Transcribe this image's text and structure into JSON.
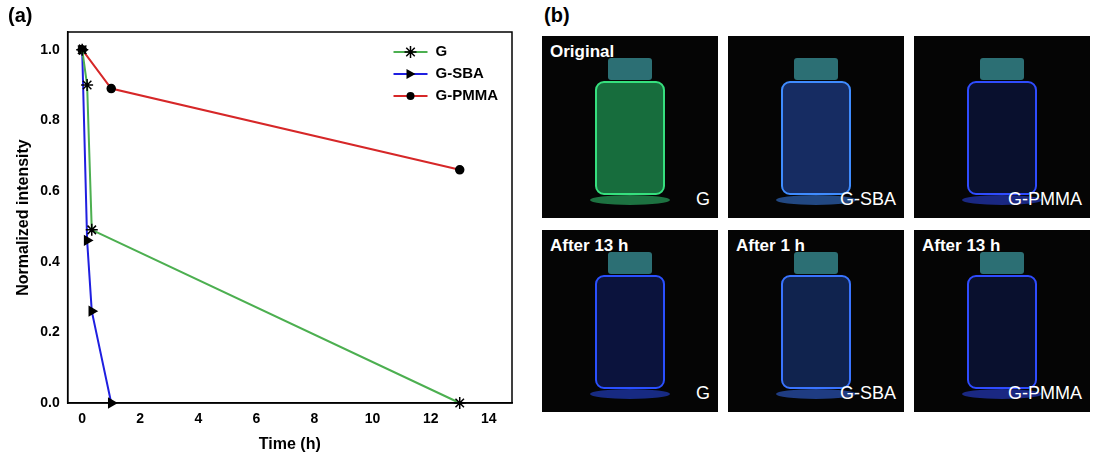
{
  "chart_data": {
    "type": "line",
    "panel_label": "(a)",
    "x_label": "Time (h)",
    "y_label": "Normalized intensity",
    "xlim": [
      -0.5,
      14.8
    ],
    "xticks": [
      0,
      2,
      4,
      6,
      8,
      10,
      12,
      14
    ],
    "ylim": [
      0,
      1.05
    ],
    "yticks": [
      {
        "value": 0,
        "label": "0.0"
      },
      0.2,
      0.4,
      0.6,
      0.8,
      {
        "value": 1,
        "label": "1.0"
      }
    ],
    "grid": false,
    "legend": "upper right",
    "series": [
      {
        "name": "G",
        "color": "#4caf50",
        "marker": "star",
        "x": [
          0,
          0.17,
          0.33,
          13
        ],
        "values": [
          1.0,
          0.9,
          0.49,
          0.0
        ]
      },
      {
        "name": "G-SBA",
        "color": "#1f1fe0",
        "marker": "triangle-right",
        "x": [
          0,
          0.17,
          0.33,
          1
        ],
        "values": [
          1.0,
          0.46,
          0.26,
          0.0
        ]
      },
      {
        "name": "G-PMMA",
        "color": "#d62728",
        "marker": "circle",
        "x": [
          0,
          1,
          13
        ],
        "values": [
          1.0,
          0.89,
          0.66
        ]
      }
    ]
  },
  "photos": {
    "panel_label": "(b)",
    "images": [
      {
        "caption": "Original",
        "sample": "G"
      },
      {
        "sample": "G-SBA"
      },
      {
        "sample": "G-PMMA"
      },
      {
        "caption": "After 13 h",
        "sample": "G"
      },
      {
        "caption": "After 1 h",
        "sample": "G-SBA"
      },
      {
        "caption": "After 13 h",
        "sample": "G-PMMA"
      }
    ]
  }
}
